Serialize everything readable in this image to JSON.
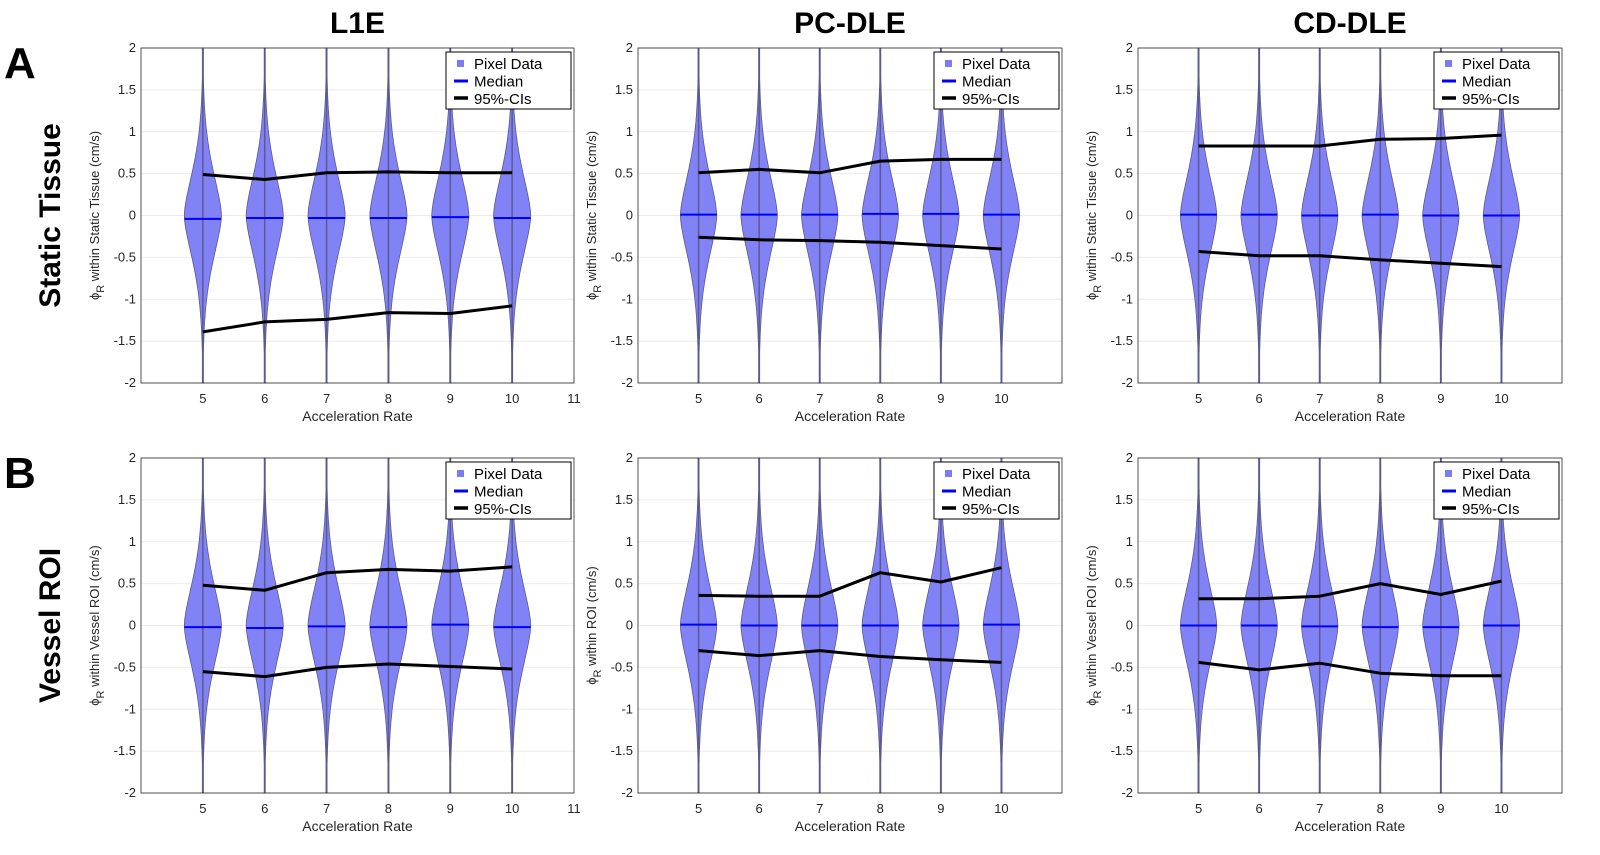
{
  "chart_data": {
    "type": "violin",
    "column_titles": [
      "L1E",
      "PC-DLE",
      "CD-DLE"
    ],
    "rows": [
      {
        "letter": "A",
        "name": "Static Tissue"
      },
      {
        "letter": "B",
        "name": "Vessel ROI"
      }
    ],
    "legend": {
      "placement": "top-right",
      "entries": [
        "Pixel Data",
        "Median",
        "95%-CIs"
      ]
    },
    "colors": {
      "violin_fill": "#7b7bf7",
      "violin_edge": "#5a5a8c",
      "median": "#0000ff",
      "ci": "#000000",
      "grid": "#ebebeb"
    },
    "x": [
      5,
      6,
      7,
      8,
      9,
      10
    ],
    "xlim": [
      4,
      11
    ],
    "ylim": [
      -2,
      2
    ],
    "yticks": [
      "2",
      "1.5",
      "1",
      "0.5",
      "0",
      "-0.5",
      "-1",
      "-1.5",
      "-2"
    ],
    "grid": "horizontal",
    "panels": [
      {
        "row": 0,
        "col": 0,
        "xlabel": "Acceleration Rate",
        "ylabel_symbol": "ϕ",
        "ylabel_sub": "R",
        "ylabel_text": " within Static Tissue (cm/s)",
        "xticks": [
          "5",
          "6",
          "7",
          "8",
          "9",
          "10",
          "11"
        ],
        "median": [
          -0.04,
          -0.03,
          -0.03,
          -0.03,
          -0.02,
          -0.03
        ],
        "ci_upper": [
          0.49,
          0.43,
          0.51,
          0.52,
          0.51,
          0.51
        ],
        "ci_lower": [
          -1.39,
          -1.27,
          -1.24,
          -1.16,
          -1.17,
          -1.08
        ]
      },
      {
        "row": 0,
        "col": 1,
        "xlabel": "Acceleration Rate",
        "ylabel_symbol": "ϕ",
        "ylabel_sub": "R",
        "ylabel_text": " within Static Tissue (cm/s)",
        "xticks": [
          "5",
          "6",
          "7",
          "8",
          "9",
          "10"
        ],
        "median": [
          0.01,
          0.01,
          0.01,
          0.02,
          0.02,
          0.01
        ],
        "ci_upper": [
          0.51,
          0.55,
          0.51,
          0.65,
          0.67,
          0.67
        ],
        "ci_lower": [
          -0.26,
          -0.29,
          -0.3,
          -0.32,
          -0.36,
          -0.4
        ]
      },
      {
        "row": 0,
        "col": 2,
        "xlabel": "Acceleration Rate",
        "ylabel_symbol": "ϕ",
        "ylabel_sub": "R",
        "ylabel_text": " within Static Tissue (cm/s)",
        "xticks": [
          "5",
          "6",
          "7",
          "8",
          "9",
          "10"
        ],
        "median": [
          0.01,
          0.01,
          0.0,
          0.01,
          0.0,
          0.0
        ],
        "ci_upper": [
          0.83,
          0.83,
          0.83,
          0.91,
          0.92,
          0.96
        ],
        "ci_lower": [
          -0.43,
          -0.48,
          -0.48,
          -0.53,
          -0.57,
          -0.61
        ]
      },
      {
        "row": 1,
        "col": 0,
        "xlabel": "Acceleration Rate",
        "ylabel_symbol": "ϕ",
        "ylabel_sub": "R",
        "ylabel_text": " within Vessel ROI (cm/s)",
        "xticks": [
          "5",
          "6",
          "7",
          "8",
          "9",
          "10",
          "11"
        ],
        "median": [
          -0.02,
          -0.03,
          -0.01,
          -0.02,
          0.01,
          -0.02
        ],
        "ci_upper": [
          0.48,
          0.42,
          0.63,
          0.67,
          0.65,
          0.7
        ],
        "ci_lower": [
          -0.55,
          -0.61,
          -0.5,
          -0.46,
          -0.49,
          -0.52
        ]
      },
      {
        "row": 1,
        "col": 1,
        "xlabel": "Acceleration Rate",
        "ylabel_symbol": "ϕ",
        "ylabel_sub": "R",
        "ylabel_text": " within ROI (cm/s)",
        "xticks": [
          "5",
          "6",
          "7",
          "8",
          "9",
          "10"
        ],
        "median": [
          0.01,
          0.0,
          0.0,
          0.0,
          0.0,
          0.01
        ],
        "ci_upper": [
          0.36,
          0.35,
          0.35,
          0.63,
          0.52,
          0.69
        ],
        "ci_lower": [
          -0.3,
          -0.36,
          -0.3,
          -0.37,
          -0.41,
          -0.44
        ]
      },
      {
        "row": 1,
        "col": 2,
        "xlabel": "Acceleration Rate",
        "ylabel_symbol": "ϕ",
        "ylabel_sub": "R",
        "ylabel_text": " within Vessel ROI (cm/s)",
        "xticks": [
          "5",
          "6",
          "7",
          "8",
          "9",
          "10"
        ],
        "median": [
          0.0,
          0.0,
          -0.01,
          -0.02,
          -0.02,
          0.0
        ],
        "ci_upper": [
          0.32,
          0.32,
          0.35,
          0.5,
          0.37,
          0.53
        ],
        "ci_lower": [
          -0.44,
          -0.53,
          -0.45,
          -0.57,
          -0.6,
          -0.6
        ]
      }
    ]
  }
}
